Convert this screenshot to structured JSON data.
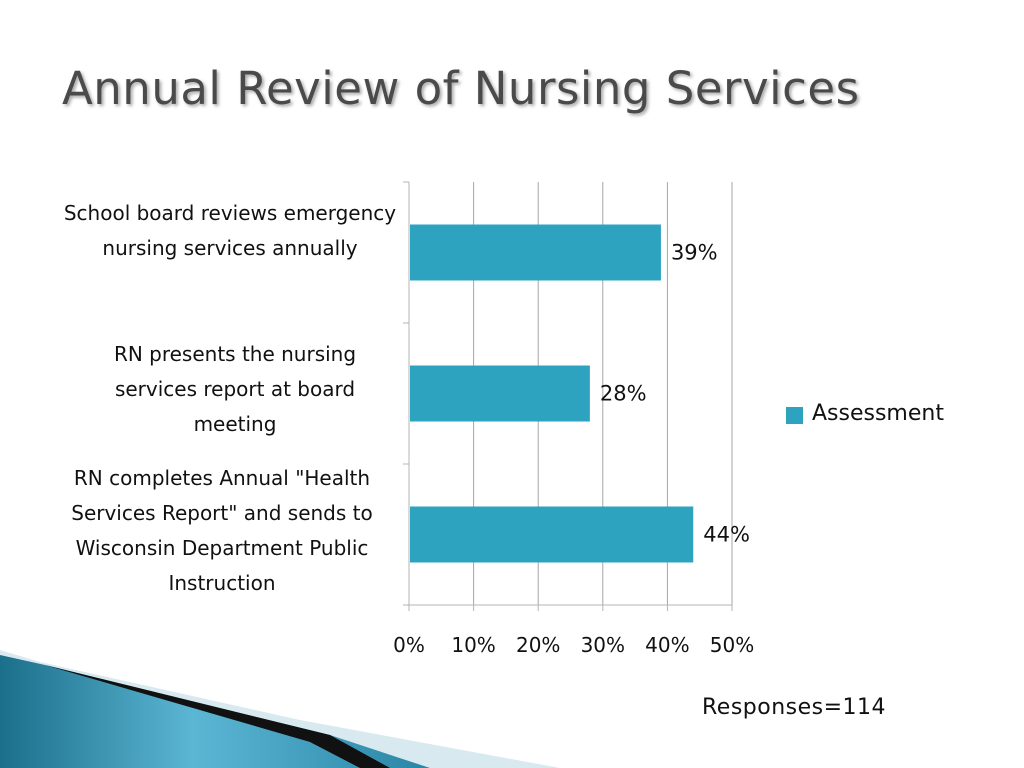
{
  "slide": {
    "title": "Annual Review of Nursing Services",
    "footnote": "Responses=114"
  },
  "colors": {
    "bar": "#2ea3bf",
    "axis": "#b5b5b5",
    "grid": "#a6a6a6"
  },
  "chart_data": {
    "type": "bar",
    "orientation": "horizontal",
    "title": "",
    "xlabel": "",
    "ylabel": "",
    "categories": [
      "School board reviews emergency nursing services annually",
      "RN presents the nursing services report at board meeting",
      "RN completes Annual \"Health Services Report\" and sends to Wisconsin Department Public Instruction"
    ],
    "series": [
      {
        "name": "Assessment",
        "values": [
          0.39,
          0.28,
          0.44
        ]
      }
    ],
    "data_labels": [
      "39%",
      "28%",
      "44%"
    ],
    "xlim": [
      0,
      0.5
    ],
    "x_ticks": [
      0,
      0.1,
      0.2,
      0.3,
      0.4,
      0.5
    ],
    "x_tick_labels": [
      "0%",
      "10%",
      "20%",
      "30%",
      "40%",
      "50%"
    ],
    "grid": true,
    "legend_position": "right"
  }
}
